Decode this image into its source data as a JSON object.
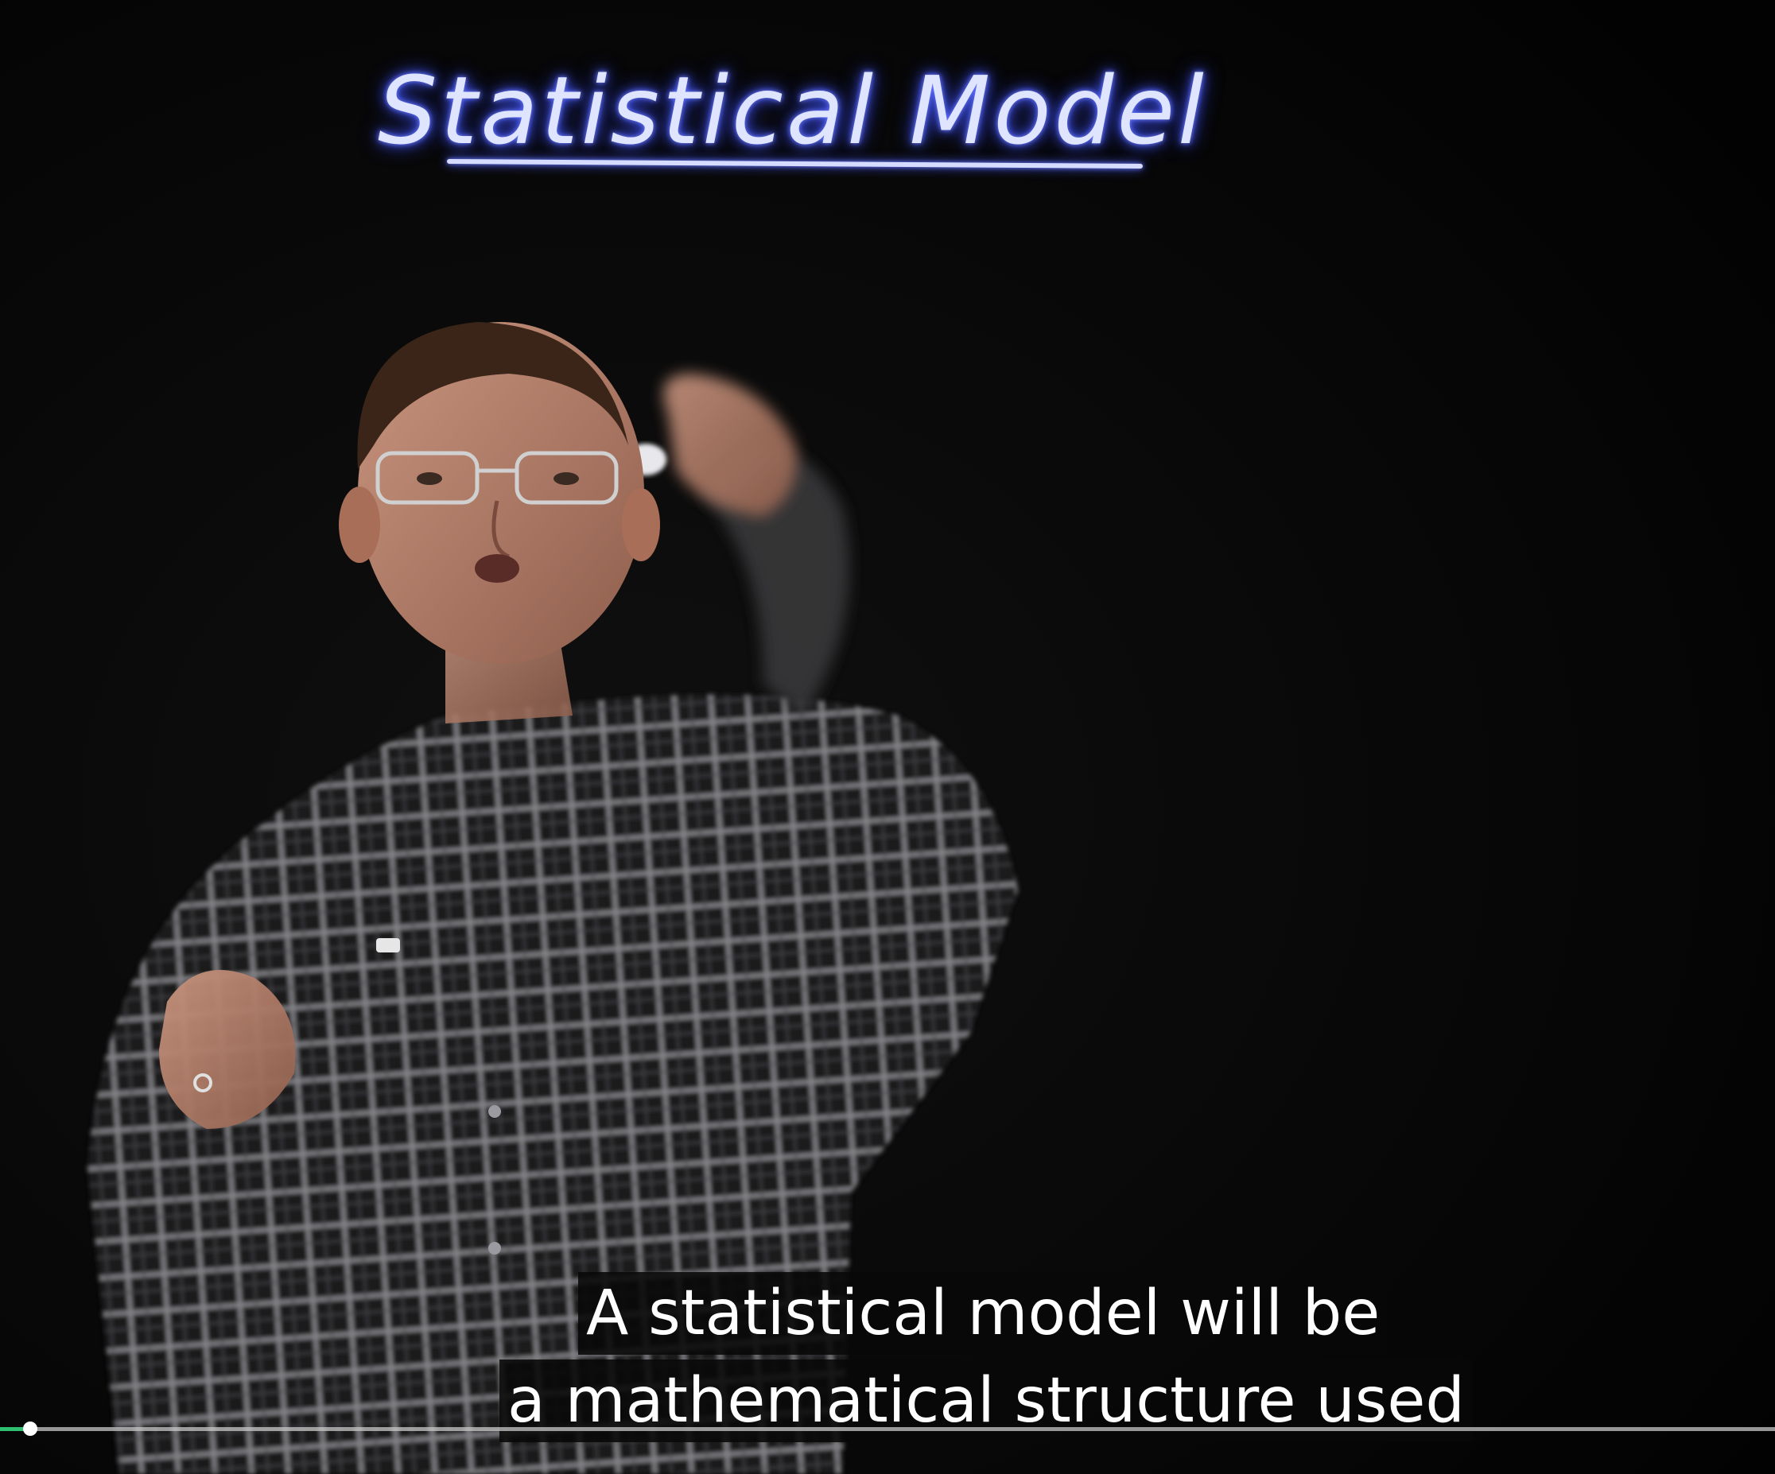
{
  "video": {
    "board_title": "Statistical Model",
    "presenter_description_icon": "person-icon",
    "captions": [
      "A statistical model will be",
      "a mathematical structure used"
    ],
    "progress_fraction": 0.017
  },
  "colors": {
    "background": "#050505",
    "marker_glow": "#4a5cff",
    "progress_played": "#2fbf71",
    "progress_track": "#c8c8c8"
  }
}
